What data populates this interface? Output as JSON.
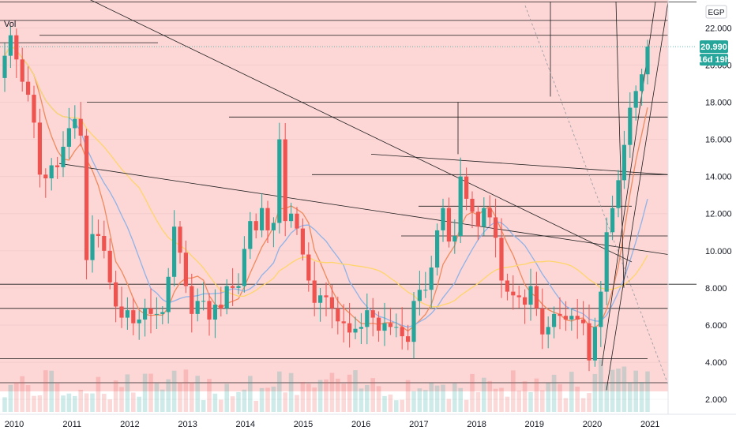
{
  "chart_data": {
    "type": "candlestick",
    "currency": "EGP",
    "volume_label": "Vol",
    "y_ticks": [
      "22.000",
      "20.000",
      "18.000",
      "16.000",
      "14.000",
      "12.000",
      "10.000",
      "8.000",
      "6.000",
      "4.000",
      "2.000"
    ],
    "y_tick_values": [
      22,
      20,
      18,
      16,
      14,
      12,
      10,
      8,
      6,
      4,
      2
    ],
    "x_ticks": [
      "2010",
      "2011",
      "2012",
      "2013",
      "2014",
      "2015",
      "2016",
      "2017",
      "2018",
      "2019",
      "2020",
      "2021"
    ],
    "ylim": [
      1.2,
      23.5
    ],
    "last_price": "20.990",
    "last_price_value": 20.99,
    "countdown": "16d 19h",
    "colors": {
      "up": "#26a69a",
      "down": "#ef5350",
      "background_zone": "#fdd6d6",
      "price_badge": "#26a69a",
      "ma_fast": "#f08a5d",
      "ma_mid": "#8fb3e8",
      "ma_slow": "#ffd56b",
      "trendline": "#1e1e1e"
    },
    "series": [
      {
        "name": "price",
        "values": [
          20.5,
          21.6,
          20.3,
          19.1,
          18.4,
          16.9,
          14.1,
          13.9,
          14.6,
          14.5,
          15.6,
          16.6,
          17.1,
          16.2,
          9.5,
          10.9,
          10.8,
          10.0,
          8.3,
          7.0,
          6.4,
          6.8,
          6.1,
          6.3,
          6.9,
          6.6,
          6.6,
          6.7,
          8.6,
          11.3,
          9.9,
          8.1,
          6.6,
          7.3,
          7.3,
          6.3,
          7.1,
          6.9,
          8.1,
          8.0,
          8.1,
          10.1,
          11.6,
          11.1,
          12.3,
          11.1,
          11.5,
          16.0,
          11.6,
          12.0,
          11.2,
          9.8,
          8.4,
          7.2,
          7.6,
          7.5,
          6.9,
          6.2,
          6.1,
          5.6,
          5.8,
          5.9,
          6.8,
          6.4,
          5.7,
          6.1,
          5.9,
          5.9,
          5.4,
          5.1,
          7.3,
          7.9,
          7.9,
          9.1,
          11.1,
          12.3,
          10.5,
          10.8,
          14.0,
          12.8,
          12.1,
          11.3,
          12.3,
          11.8,
          10.7,
          8.4,
          7.8,
          7.6,
          7.5,
          7.1,
          8.1,
          6.9,
          5.5,
          5.9,
          6.6,
          6.5,
          6.3,
          6.5,
          6.3,
          6.1,
          4.1,
          5.9,
          7.8,
          11.0,
          12.3,
          13.8,
          15.7,
          17.7,
          18.6,
          19.5,
          20.99
        ]
      }
    ]
  }
}
